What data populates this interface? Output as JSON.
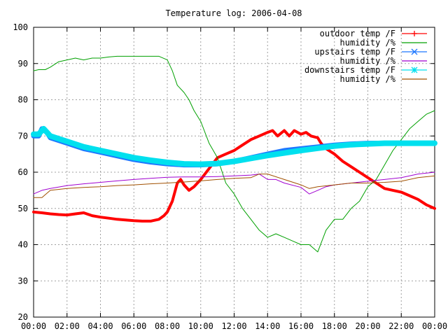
{
  "chart_data": {
    "type": "line",
    "title": "Temperature log: 2006-04-08",
    "xlabel": "",
    "ylabel": "",
    "xlim": [
      "00:00",
      "24:00"
    ],
    "ylim": [
      20,
      100
    ],
    "grid": true,
    "legend_position": "top-right",
    "y_ticks": [
      "20",
      "30",
      "40",
      "50",
      "60",
      "70",
      "80",
      "90",
      "100"
    ],
    "x_ticks": [
      "00:00",
      "02:00",
      "04:00",
      "06:00",
      "08:00",
      "10:00",
      "12:00",
      "14:00",
      "16:00",
      "18:00",
      "20:00",
      "22:00",
      "00:00"
    ],
    "series": [
      {
        "name": "outdoor temp /F",
        "color": "#ff0000",
        "marker": "plus",
        "width": 4,
        "points": [
          [
            0,
            49
          ],
          [
            0.5,
            48.8
          ],
          [
            1,
            48.5
          ],
          [
            1.5,
            48.3
          ],
          [
            2,
            48.2
          ],
          [
            2.5,
            48.5
          ],
          [
            3,
            48.8
          ],
          [
            3.5,
            48
          ],
          [
            4,
            47.6
          ],
          [
            4.5,
            47.3
          ],
          [
            5,
            47
          ],
          [
            5.5,
            46.8
          ],
          [
            6,
            46.6
          ],
          [
            6.5,
            46.5
          ],
          [
            7,
            46.5
          ],
          [
            7.5,
            47
          ],
          [
            7.8,
            48
          ],
          [
            8,
            49
          ],
          [
            8.3,
            52
          ],
          [
            8.6,
            57
          ],
          [
            8.8,
            58
          ],
          [
            9,
            56.5
          ],
          [
            9.3,
            55
          ],
          [
            9.6,
            56
          ],
          [
            10,
            58
          ],
          [
            10.5,
            61
          ],
          [
            11,
            64
          ],
          [
            11.5,
            65
          ],
          [
            12,
            66
          ],
          [
            12.5,
            67.5
          ],
          [
            13,
            69
          ],
          [
            13.5,
            70
          ],
          [
            14,
            71
          ],
          [
            14.3,
            71.5
          ],
          [
            14.6,
            70
          ],
          [
            15,
            71.5
          ],
          [
            15.3,
            70
          ],
          [
            15.6,
            71.5
          ],
          [
            16,
            70.5
          ],
          [
            16.3,
            71
          ],
          [
            16.6,
            70
          ],
          [
            17,
            69.5
          ],
          [
            17.2,
            68
          ],
          [
            17.5,
            66.5
          ],
          [
            18,
            65
          ],
          [
            18.5,
            63
          ],
          [
            19,
            61.5
          ],
          [
            19.5,
            60
          ],
          [
            20,
            58.5
          ],
          [
            20.5,
            57
          ],
          [
            21,
            55.5
          ],
          [
            21.5,
            55
          ],
          [
            22,
            54.5
          ],
          [
            22.5,
            53.5
          ],
          [
            23,
            52.5
          ],
          [
            23.5,
            51
          ],
          [
            24,
            50
          ]
        ]
      },
      {
        "name": "humidity /%",
        "color": "#00a000",
        "marker": "",
        "width": 1,
        "points": [
          [
            0,
            88
          ],
          [
            0.3,
            88.3
          ],
          [
            0.7,
            88.3
          ],
          [
            1,
            89
          ],
          [
            1.5,
            90.5
          ],
          [
            2,
            91
          ],
          [
            2.5,
            91.5
          ],
          [
            3,
            91
          ],
          [
            3.5,
            91.5
          ],
          [
            4,
            91.5
          ],
          [
            4.5,
            91.8
          ],
          [
            5,
            92
          ],
          [
            5.5,
            92
          ],
          [
            6,
            92
          ],
          [
            6.5,
            92
          ],
          [
            7,
            92
          ],
          [
            7.5,
            92
          ],
          [
            8,
            91
          ],
          [
            8.3,
            88
          ],
          [
            8.6,
            84
          ],
          [
            9,
            82
          ],
          [
            9.3,
            80
          ],
          [
            9.6,
            77
          ],
          [
            10,
            74
          ],
          [
            10.5,
            68
          ],
          [
            11,
            64
          ],
          [
            11.5,
            57
          ],
          [
            12,
            54
          ],
          [
            12.5,
            50
          ],
          [
            13,
            47
          ],
          [
            13.5,
            44
          ],
          [
            14,
            42
          ],
          [
            14.5,
            43
          ],
          [
            15,
            42
          ],
          [
            15.5,
            41
          ],
          [
            16,
            40
          ],
          [
            16.5,
            40
          ],
          [
            17,
            38
          ],
          [
            17.5,
            44
          ],
          [
            18,
            47
          ],
          [
            18.5,
            47
          ],
          [
            19,
            50
          ],
          [
            19.5,
            52
          ],
          [
            20,
            56
          ],
          [
            20.5,
            58
          ],
          [
            21,
            62
          ],
          [
            21.5,
            66
          ],
          [
            22,
            69
          ],
          [
            22.5,
            72
          ],
          [
            23,
            74
          ],
          [
            23.5,
            76
          ],
          [
            24,
            77
          ]
        ]
      },
      {
        "name": "upstairs temp /F",
        "color": "#1e78ff",
        "marker": "x",
        "width": 7,
        "points": [
          [
            0,
            70
          ],
          [
            0.3,
            70
          ],
          [
            0.5,
            72
          ],
          [
            0.8,
            71
          ],
          [
            1,
            69.5
          ],
          [
            2,
            68
          ],
          [
            3,
            66.5
          ],
          [
            4,
            65.5
          ],
          [
            5,
            64.5
          ],
          [
            6,
            63.5
          ],
          [
            7,
            62.8
          ],
          [
            8,
            62.3
          ],
          [
            9,
            62
          ],
          [
            10,
            62
          ],
          [
            11,
            62.3
          ],
          [
            12,
            63
          ],
          [
            13,
            64
          ],
          [
            14,
            65
          ],
          [
            15,
            66
          ],
          [
            16,
            66.5
          ],
          [
            17,
            67
          ],
          [
            18,
            67.5
          ],
          [
            19,
            67.8
          ],
          [
            20,
            68
          ],
          [
            21,
            68
          ],
          [
            22,
            68
          ],
          [
            23,
            68
          ],
          [
            24,
            68
          ]
        ]
      },
      {
        "name": "humidity /%",
        "color": "#a000d0",
        "marker": "",
        "width": 1,
        "points": [
          [
            0,
            54
          ],
          [
            0.5,
            55
          ],
          [
            1,
            55.5
          ],
          [
            2,
            56.3
          ],
          [
            3,
            56.8
          ],
          [
            4,
            57.2
          ],
          [
            5,
            57.6
          ],
          [
            6,
            58
          ],
          [
            7,
            58.3
          ],
          [
            8,
            58.6
          ],
          [
            9,
            58.7
          ],
          [
            10,
            58.7
          ],
          [
            11,
            58.8
          ],
          [
            12,
            59
          ],
          [
            13,
            59.2
          ],
          [
            13.5,
            59.5
          ],
          [
            14,
            58
          ],
          [
            14.5,
            58
          ],
          [
            15,
            57
          ],
          [
            16,
            55.8
          ],
          [
            16.5,
            54
          ],
          [
            17,
            55
          ],
          [
            17.5,
            56
          ],
          [
            18,
            56.5
          ],
          [
            19,
            57
          ],
          [
            20,
            57.5
          ],
          [
            21,
            58
          ],
          [
            22,
            58.5
          ],
          [
            23,
            59.5
          ],
          [
            24,
            60
          ]
        ]
      },
      {
        "name": "downstairs temp /F",
        "color": "#00e0ee",
        "marker": "star",
        "width": 8,
        "points": [
          [
            0,
            70.5
          ],
          [
            0.3,
            70.5
          ],
          [
            0.6,
            72
          ],
          [
            1,
            70
          ],
          [
            2,
            68.5
          ],
          [
            3,
            67
          ],
          [
            4,
            66
          ],
          [
            5,
            65
          ],
          [
            6,
            64
          ],
          [
            7,
            63.3
          ],
          [
            8,
            62.7
          ],
          [
            9,
            62.3
          ],
          [
            10,
            62.2
          ],
          [
            11,
            62.4
          ],
          [
            12,
            63
          ],
          [
            13,
            63.8
          ],
          [
            14,
            64.6
          ],
          [
            15,
            65.3
          ],
          [
            16,
            66
          ],
          [
            17,
            66.6
          ],
          [
            18,
            67.2
          ],
          [
            19,
            67.6
          ],
          [
            20,
            67.8
          ],
          [
            21,
            68
          ],
          [
            22,
            68
          ],
          [
            23,
            68
          ],
          [
            24,
            68
          ]
        ]
      },
      {
        "name": "humidity /%",
        "color": "#a05000",
        "marker": "",
        "width": 1,
        "points": [
          [
            0,
            53
          ],
          [
            0.5,
            53
          ],
          [
            1,
            55
          ],
          [
            2,
            55.5
          ],
          [
            3,
            55.8
          ],
          [
            4,
            56
          ],
          [
            5,
            56.3
          ],
          [
            6,
            56.5
          ],
          [
            7,
            56.8
          ],
          [
            8,
            57
          ],
          [
            9,
            57.3
          ],
          [
            10,
            57.6
          ],
          [
            11,
            58
          ],
          [
            12,
            58.3
          ],
          [
            13,
            58.5
          ],
          [
            13.5,
            59.5
          ],
          [
            14,
            59.5
          ],
          [
            15,
            58
          ],
          [
            16,
            56.5
          ],
          [
            16.5,
            55.5
          ],
          [
            17,
            56
          ],
          [
            18,
            56.5
          ],
          [
            19,
            57
          ],
          [
            20,
            57
          ],
          [
            21,
            57.2
          ],
          [
            22,
            57.5
          ],
          [
            23,
            58.5
          ],
          [
            24,
            59
          ]
        ]
      }
    ]
  }
}
